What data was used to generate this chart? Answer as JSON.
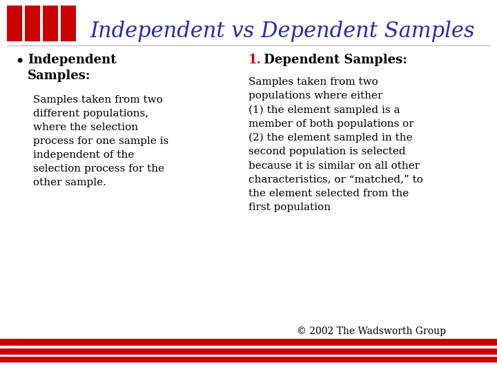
{
  "title": "Independent vs Dependent Samples",
  "title_color": "#2B2BAA",
  "title_fontsize": 22,
  "title_style": "italic",
  "background_color": "#FFFFFF",
  "text_color": "#000000",
  "red_color": "#CC0000",
  "left_heading": "Independent\nSamples:",
  "left_body": "Samples taken from two\ndifferent populations,\nwhere the selection\nprocess for one sample is\nindependent of the\nselection process for the\nother sample.",
  "right_number": "1.",
  "right_heading": " Dependent Samples:",
  "right_body": "Samples taken from two\npopulations where either\n(1) the element sampled is a\nmember of both populations or\n(2) the element sampled in the\nsecond population is selected\nbecause it is similar on all other\ncharacteristics, or “matched,” to\nthe element selected from the\nfirst population",
  "footer": "© 2002 The Wadsworth Group",
  "heading_fontsize": 13,
  "body_fontsize": 11,
  "footer_fontsize": 10
}
